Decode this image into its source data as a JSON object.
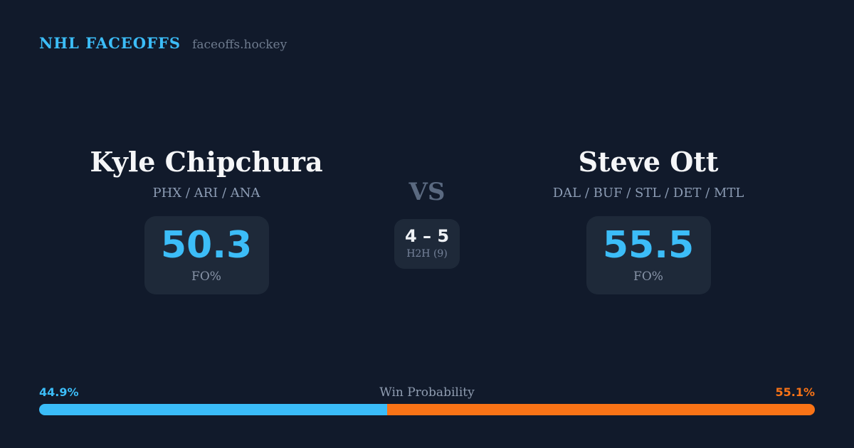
{
  "header": {
    "brand": "NHL FACEOFFS",
    "site": "faceoffs.hockey"
  },
  "players": {
    "left": {
      "name": "Kyle Chipchura",
      "teams": "PHX / ARI / ANA",
      "fo_pct": "50.3",
      "fo_label": "FO%"
    },
    "right": {
      "name": "Steve Ott",
      "teams": "DAL / BUF / STL / DET / MTL",
      "fo_pct": "55.5",
      "fo_label": "FO%"
    }
  },
  "center": {
    "vs_label": "VS",
    "h2h_score": "4 – 5",
    "h2h_label": "H2H (9)"
  },
  "win_probability": {
    "label": "Win Probability",
    "left_pct_text": "44.9%",
    "right_pct_text": "55.1%",
    "left_value": 44.9,
    "right_value": 55.1
  },
  "colors": {
    "background": "#111a2b",
    "card": "#1e2939",
    "accent_cyan": "#3cbdf8",
    "accent_orange": "#f97316"
  }
}
